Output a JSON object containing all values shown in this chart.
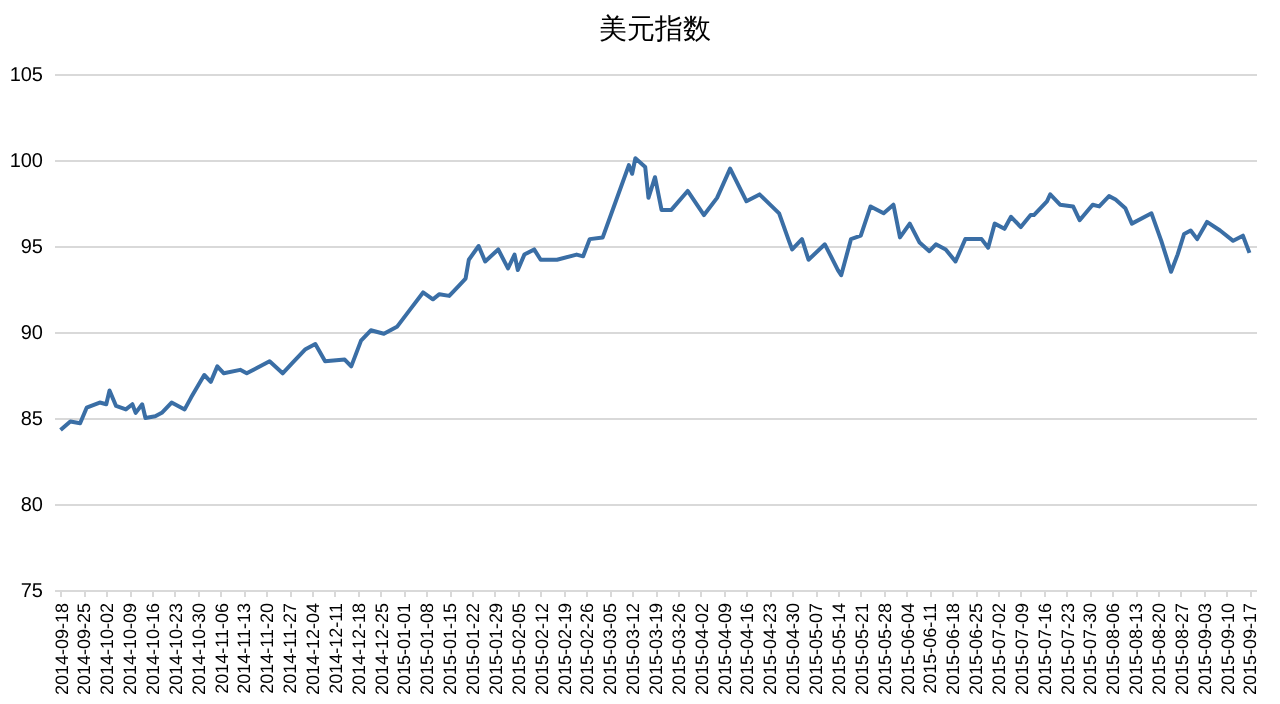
{
  "chart_data": {
    "type": "line",
    "title": "美元指数",
    "x": [
      "2014-09-18",
      "2014-09-21",
      "2014-09-24",
      "2014-09-26",
      "2014-09-30",
      "2014-10-02",
      "2014-10-03",
      "2014-10-05",
      "2014-10-08",
      "2014-10-10",
      "2014-10-11",
      "2014-10-13",
      "2014-10-14",
      "2014-10-17",
      "2014-10-19",
      "2014-10-22",
      "2014-10-26",
      "2014-10-28",
      "2014-11-01",
      "2014-11-03",
      "2014-11-05",
      "2014-11-07",
      "2014-11-12",
      "2014-11-14",
      "2014-11-21",
      "2014-11-25",
      "2014-11-28",
      "2014-12-02",
      "2014-12-05",
      "2014-12-08",
      "2014-12-14",
      "2014-12-16",
      "2014-12-19",
      "2014-12-22",
      "2014-12-26",
      "2014-12-30",
      "2015-01-03",
      "2015-01-07",
      "2015-01-10",
      "2015-01-12",
      "2015-01-15",
      "2015-01-18",
      "2015-01-20",
      "2015-01-21",
      "2015-01-24",
      "2015-01-26",
      "2015-01-30",
      "2015-02-02",
      "2015-02-04",
      "2015-02-05",
      "2015-02-07",
      "2015-02-10",
      "2015-02-12",
      "2015-02-17",
      "2015-02-23",
      "2015-02-25",
      "2015-02-27",
      "2015-03-03",
      "2015-03-07",
      "2015-03-11",
      "2015-03-12",
      "2015-03-13",
      "2015-03-16",
      "2015-03-17",
      "2015-03-19",
      "2015-03-21",
      "2015-03-24",
      "2015-03-29",
      "2015-04-03",
      "2015-04-07",
      "2015-04-11",
      "2015-04-16",
      "2015-04-20",
      "2015-04-26",
      "2015-04-29",
      "2015-04-30",
      "2015-05-03",
      "2015-05-05",
      "2015-05-10",
      "2015-05-14",
      "2015-05-15",
      "2015-05-18",
      "2015-05-21",
      "2015-05-24",
      "2015-05-28",
      "2015-05-31",
      "2015-06-02",
      "2015-06-05",
      "2015-06-08",
      "2015-06-11",
      "2015-06-13",
      "2015-06-16",
      "2015-06-19",
      "2015-06-22",
      "2015-06-27",
      "2015-06-29",
      "2015-07-01",
      "2015-07-04",
      "2015-07-06",
      "2015-07-09",
      "2015-07-12",
      "2015-07-13",
      "2015-07-17",
      "2015-07-18",
      "2015-07-21",
      "2015-07-25",
      "2015-07-27",
      "2015-07-31",
      "2015-08-02",
      "2015-08-05",
      "2015-08-07",
      "2015-08-10",
      "2015-08-12",
      "2015-08-18",
      "2015-08-21",
      "2015-08-24",
      "2015-08-26",
      "2015-08-28",
      "2015-08-30",
      "2015-09-01",
      "2015-09-04",
      "2015-09-08",
      "2015-09-12",
      "2015-09-15",
      "2015-09-17"
    ],
    "series": [
      {
        "color": "#3a6ea5",
        "values": [
          84.3,
          84.8,
          84.7,
          85.6,
          85.9,
          85.8,
          86.6,
          85.7,
          85.5,
          85.8,
          85.3,
          85.8,
          85.0,
          85.1,
          85.3,
          85.9,
          85.5,
          86.2,
          87.5,
          87.1,
          88.0,
          87.6,
          87.8,
          87.6,
          88.3,
          87.6,
          88.2,
          89.0,
          89.3,
          88.3,
          88.4,
          88.0,
          89.5,
          90.1,
          89.9,
          90.3,
          91.3,
          92.3,
          91.9,
          92.2,
          92.1,
          92.7,
          93.1,
          94.2,
          95.0,
          94.1,
          94.8,
          93.7,
          94.5,
          93.6,
          94.5,
          94.8,
          94.2,
          94.2,
          94.5,
          94.4,
          95.4,
          95.5,
          97.6,
          99.7,
          99.2,
          100.1,
          99.6,
          97.8,
          99.0,
          97.1,
          97.1,
          98.2,
          96.8,
          97.8,
          99.5,
          97.6,
          98.0,
          96.9,
          95.3,
          94.8,
          95.4,
          94.2,
          95.1,
          93.6,
          93.3,
          95.4,
          95.6,
          97.3,
          96.9,
          97.4,
          95.5,
          96.3,
          95.2,
          94.7,
          95.1,
          94.8,
          94.1,
          95.4,
          95.4,
          94.9,
          96.3,
          96.0,
          96.7,
          96.1,
          96.8,
          96.8,
          97.6,
          98.0,
          97.4,
          97.3,
          96.5,
          97.4,
          97.3,
          97.9,
          97.7,
          97.2,
          96.3,
          96.9,
          95.3,
          93.5,
          94.5,
          95.7,
          95.9,
          95.4,
          96.4,
          95.9,
          95.3,
          95.6,
          94.6
        ]
      }
    ],
    "xlim": [
      "2014-09-16",
      "2015-09-19"
    ],
    "xticks": [
      "2014-09-18",
      "2014-09-25",
      "2014-10-02",
      "2014-10-09",
      "2014-10-16",
      "2014-10-23",
      "2014-10-30",
      "2014-11-06",
      "2014-11-13",
      "2014-11-20",
      "2014-11-27",
      "2014-12-04",
      "2014-12-11",
      "2014-12-18",
      "2014-12-25",
      "2015-01-01",
      "2015-01-08",
      "2015-01-15",
      "2015-01-22",
      "2015-01-29",
      "2015-02-05",
      "2015-02-12",
      "2015-02-19",
      "2015-02-26",
      "2015-03-05",
      "2015-03-12",
      "2015-03-19",
      "2015-03-26",
      "2015-04-02",
      "2015-04-09",
      "2015-04-16",
      "2015-04-23",
      "2015-04-30",
      "2015-05-07",
      "2015-05-14",
      "2015-05-21",
      "2015-05-28",
      "2015-06-04",
      "2015-06-11",
      "2015-06-18",
      "2015-06-25",
      "2015-07-02",
      "2015-07-09",
      "2015-07-16",
      "2015-07-23",
      "2015-07-30",
      "2015-08-06",
      "2015-08-13",
      "2015-08-20",
      "2015-08-27",
      "2015-09-03",
      "2015-09-10",
      "2015-09-17"
    ],
    "ylim": [
      75,
      105
    ],
    "yticks": [
      75,
      80,
      85,
      90,
      95,
      100,
      105
    ],
    "grid": "y",
    "legend": false,
    "marker": "none",
    "line_style": "solid"
  }
}
